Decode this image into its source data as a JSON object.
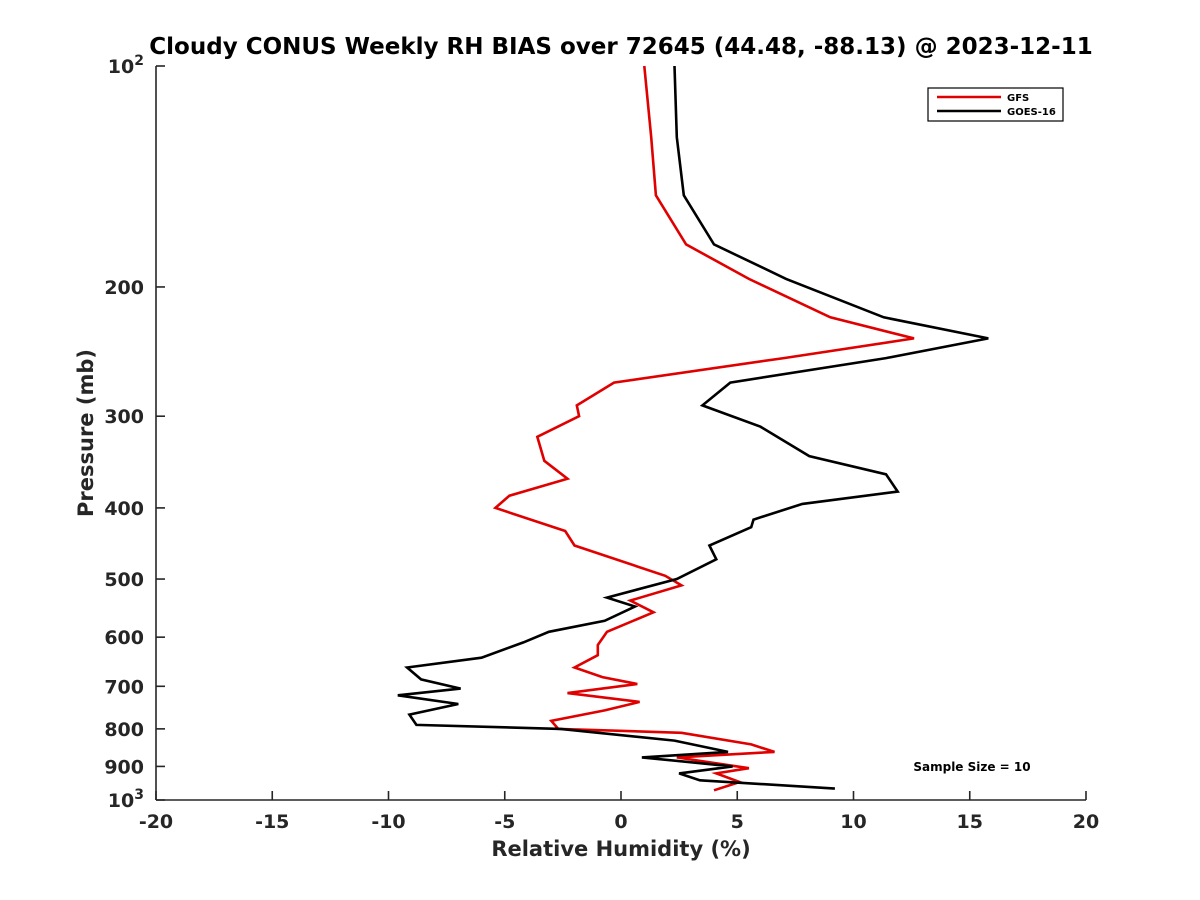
{
  "chart_data": {
    "type": "line",
    "title": "Cloudy CONUS Weekly RH BIAS over 72645 (44.48, -88.13) @ 2023-12-11",
    "xlabel": "Relative Humidity (%)",
    "ylabel": "Pressure (mb)",
    "xlim": [
      -20,
      20
    ],
    "ylim": [
      100,
      1000
    ],
    "y_scale": "log",
    "y_reversed": true,
    "x_ticks": [
      -20,
      -15,
      -10,
      -5,
      0,
      5,
      10,
      15,
      20
    ],
    "x_tick_labels": [
      "-20",
      "-15",
      "-10",
      "-5",
      "0",
      "5",
      "10",
      "15",
      "20"
    ],
    "y_ticks": [
      100,
      200,
      300,
      400,
      500,
      600,
      700,
      800,
      900,
      1000
    ],
    "y_tick_labels": [
      {
        "base": "10",
        "exp": "2"
      },
      {
        "base": "200",
        "exp": ""
      },
      {
        "base": "300",
        "exp": ""
      },
      {
        "base": "400",
        "exp": ""
      },
      {
        "base": "500",
        "exp": ""
      },
      {
        "base": "600",
        "exp": ""
      },
      {
        "base": "700",
        "exp": ""
      },
      {
        "base": "800",
        "exp": ""
      },
      {
        "base": "900",
        "exp": ""
      },
      {
        "base": "10",
        "exp": "3"
      }
    ],
    "grid": false,
    "legend_position": "top-right",
    "annotation": "Sample Size = 10",
    "series": [
      {
        "name": "GFS",
        "color": "#e00000",
        "points": [
          [
            1.0,
            100
          ],
          [
            1.3,
            125
          ],
          [
            1.5,
            150
          ],
          [
            2.8,
            175
          ],
          [
            5.5,
            195
          ],
          [
            9.0,
            220
          ],
          [
            12.6,
            235
          ],
          [
            7.0,
            250
          ],
          [
            -0.3,
            270
          ],
          [
            -1.9,
            290
          ],
          [
            -1.8,
            300
          ],
          [
            -3.6,
            320
          ],
          [
            -3.3,
            345
          ],
          [
            -2.3,
            365
          ],
          [
            -4.8,
            385
          ],
          [
            -5.4,
            400
          ],
          [
            -2.4,
            430
          ],
          [
            -2.0,
            450
          ],
          [
            1.9,
            495
          ],
          [
            2.6,
            510
          ],
          [
            0.4,
            535
          ],
          [
            1.4,
            555
          ],
          [
            -0.6,
            590
          ],
          [
            -1.0,
            615
          ],
          [
            -1.0,
            635
          ],
          [
            -2.0,
            660
          ],
          [
            -0.8,
            680
          ],
          [
            0.7,
            695
          ],
          [
            -2.3,
            715
          ],
          [
            0.8,
            735
          ],
          [
            -0.7,
            755
          ],
          [
            -3.0,
            780
          ],
          [
            -2.7,
            800
          ],
          [
            2.6,
            810
          ],
          [
            5.6,
            840
          ],
          [
            6.6,
            860
          ],
          [
            2.4,
            875
          ],
          [
            5.5,
            905
          ],
          [
            4.1,
            920
          ],
          [
            5.1,
            945
          ],
          [
            4.0,
            970
          ]
        ]
      },
      {
        "name": "GOES-16",
        "color": "#000000",
        "points": [
          [
            2.3,
            100
          ],
          [
            2.4,
            125
          ],
          [
            2.7,
            150
          ],
          [
            4.0,
            175
          ],
          [
            7.1,
            195
          ],
          [
            11.3,
            220
          ],
          [
            15.8,
            235
          ],
          [
            11.4,
            250
          ],
          [
            4.7,
            270
          ],
          [
            3.5,
            290
          ],
          [
            6.0,
            310
          ],
          [
            8.1,
            340
          ],
          [
            11.4,
            360
          ],
          [
            11.9,
            380
          ],
          [
            7.8,
            395
          ],
          [
            5.7,
            415
          ],
          [
            5.6,
            425
          ],
          [
            3.8,
            450
          ],
          [
            4.1,
            470
          ],
          [
            2.4,
            500
          ],
          [
            -0.6,
            530
          ],
          [
            0.6,
            545
          ],
          [
            -0.7,
            570
          ],
          [
            -3.1,
            590
          ],
          [
            -4.2,
            610
          ],
          [
            -6.0,
            640
          ],
          [
            -9.2,
            660
          ],
          [
            -8.6,
            685
          ],
          [
            -6.9,
            705
          ],
          [
            -9.6,
            720
          ],
          [
            -7.0,
            740
          ],
          [
            -9.1,
            765
          ],
          [
            -8.8,
            790
          ],
          [
            -2.6,
            800
          ],
          [
            2.3,
            830
          ],
          [
            4.6,
            860
          ],
          [
            0.9,
            875
          ],
          [
            4.8,
            900
          ],
          [
            2.5,
            920
          ],
          [
            3.4,
            940
          ],
          [
            9.2,
            965
          ]
        ]
      }
    ]
  }
}
